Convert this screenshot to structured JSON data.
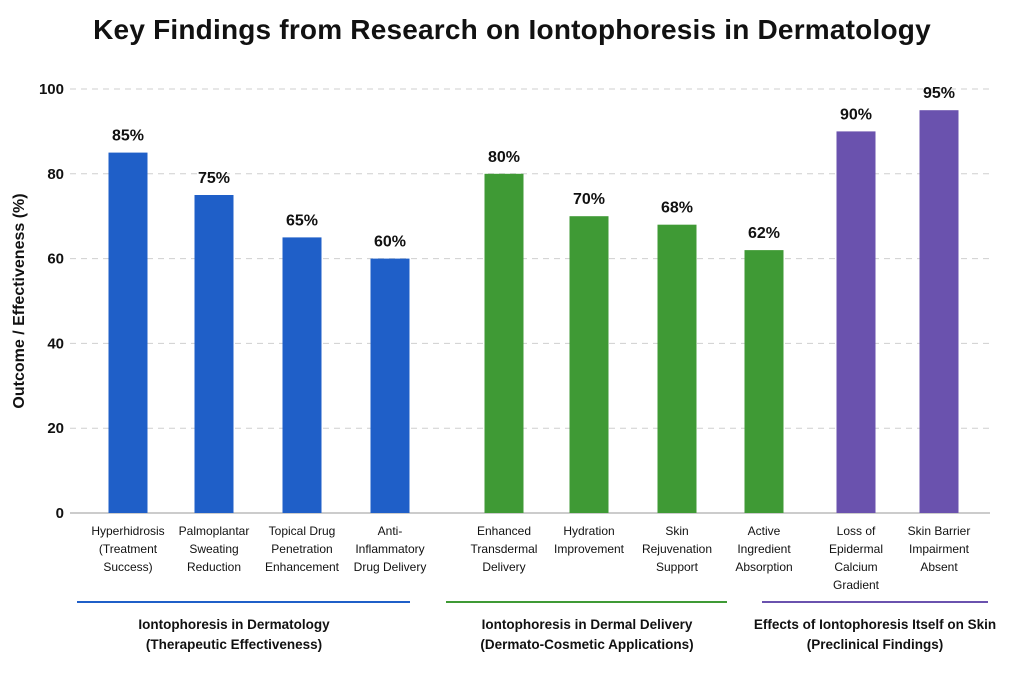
{
  "chart_data": {
    "type": "bar",
    "title": "Key Findings from Research on Iontophoresis in Dermatology",
    "ylabel": "Outcome / Effectiveness (%)",
    "xlabel": "",
    "ylim": [
      0,
      100
    ],
    "yticks": [
      0,
      20,
      40,
      60,
      80,
      100
    ],
    "grid": true,
    "categories": [
      [
        "Hyperhidrosis",
        "(Treatment",
        "Success)"
      ],
      [
        "Palmoplantar",
        "Sweating",
        "Reduction"
      ],
      [
        "Topical Drug",
        "Penetration",
        "Enhancement"
      ],
      [
        "Anti-",
        "Inflammatory",
        "Drug Delivery"
      ],
      [
        "Enhanced",
        "Transdermal",
        "Delivery"
      ],
      [
        "Hydration",
        "Improvement"
      ],
      [
        "Skin",
        "Rejuvenation",
        "Support"
      ],
      [
        "Active",
        "Ingredient",
        "Absorption"
      ],
      [
        "Loss of",
        "Epidermal",
        "Calcium",
        "Gradient"
      ],
      [
        "Skin Barrier",
        "Impairment",
        "Absent"
      ]
    ],
    "values": [
      85,
      75,
      65,
      60,
      80,
      70,
      68,
      62,
      90,
      95
    ],
    "value_labels": [
      "85%",
      "75%",
      "65%",
      "60%",
      "80%",
      "70%",
      "68%",
      "62%",
      "90%",
      "95%"
    ],
    "groups": [
      {
        "lines": [
          "Iontophoresis in Dermatology",
          "(Therapeutic Effectiveness)"
        ],
        "color": "#1f5fc8",
        "bars": [
          0,
          1,
          2,
          3
        ]
      },
      {
        "lines": [
          "Iontophoresis in Dermal Delivery",
          "(Dermato-Cosmetic Applications)"
        ],
        "color": "#3f9a35",
        "bars": [
          4,
          5,
          6,
          7
        ]
      },
      {
        "lines": [
          "Effects of Iontophoresis Itself on Skin",
          "(Preclinical Findings)"
        ],
        "color": "#6a52ae",
        "bars": [
          8,
          9
        ]
      }
    ]
  }
}
